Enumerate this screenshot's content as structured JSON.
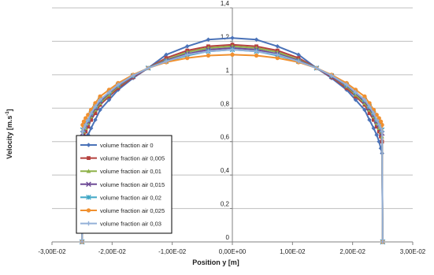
{
  "colors": {
    "grid": "#bfbfbf",
    "axis": "#808080",
    "text": "#1f1f1f"
  },
  "chart_data": {
    "type": "line",
    "title": "",
    "xlabel": "Position y [m]",
    "ylabel_main": "Velocity [m.s",
    "ylabel_sup": "-1",
    "ylabel_end": "]",
    "xlim": [
      -0.03,
      0.03
    ],
    "ylim": [
      0,
      1.4
    ],
    "xticks": [
      -0.03,
      -0.02,
      -0.01,
      0,
      0.01,
      0.02,
      0.03
    ],
    "xtick_labels": [
      "-3,00E-02",
      "-2,00E-02",
      "-1,00E-02",
      "0,00E+00",
      "1,00E-02",
      "2,00E-02",
      "3,00E-02"
    ],
    "yticks": [
      0,
      0.2,
      0.4,
      0.6,
      0.8,
      1,
      1.2,
      1.4
    ],
    "ytick_labels": [
      "0",
      "0,2",
      "0,4",
      "0,6",
      "0,8",
      "1",
      "1,2",
      "1,4"
    ],
    "grid": "horizontal",
    "legend_position": "left-middle",
    "series": [
      {
        "name": "volume fraction air 0",
        "color": "#4a72b8",
        "marker": "diamond",
        "x": [
          -0.025,
          -0.0249,
          -0.0247,
          -0.0244,
          -0.024,
          -0.0235,
          -0.0228,
          -0.022,
          -0.0205,
          -0.019,
          -0.0165,
          -0.014,
          -0.011,
          -0.0075,
          -0.004,
          0,
          0.004,
          0.0075,
          0.011,
          0.014,
          0.0165,
          0.019,
          0.0205,
          0.022,
          0.0228,
          0.0235,
          0.024,
          0.0244,
          0.0247,
          0.0249,
          0.025
        ],
        "y": [
          0,
          0.53,
          0.56,
          0.6,
          0.64,
          0.68,
          0.73,
          0.79,
          0.85,
          0.91,
          0.98,
          1.04,
          1.12,
          1.17,
          1.21,
          1.22,
          1.21,
          1.17,
          1.12,
          1.04,
          0.98,
          0.91,
          0.85,
          0.79,
          0.73,
          0.68,
          0.64,
          0.6,
          0.56,
          0.53,
          0
        ]
      },
      {
        "name": "volume fraction air 0,005",
        "color": "#b5403d",
        "marker": "square",
        "x": [
          -0.025,
          -0.0249,
          -0.0247,
          -0.0244,
          -0.024,
          -0.0235,
          -0.0228,
          -0.022,
          -0.0205,
          -0.019,
          -0.0165,
          -0.014,
          -0.011,
          -0.0075,
          -0.004,
          0,
          0.004,
          0.0075,
          0.011,
          0.014,
          0.0165,
          0.019,
          0.0205,
          0.022,
          0.0228,
          0.0235,
          0.024,
          0.0244,
          0.0247,
          0.0249,
          0.025
        ],
        "y": [
          0,
          0.6,
          0.63,
          0.66,
          0.69,
          0.73,
          0.77,
          0.82,
          0.87,
          0.92,
          0.985,
          1.04,
          1.1,
          1.145,
          1.17,
          1.18,
          1.17,
          1.145,
          1.1,
          1.04,
          0.985,
          0.92,
          0.87,
          0.82,
          0.77,
          0.73,
          0.69,
          0.66,
          0.63,
          0.6,
          0
        ]
      },
      {
        "name": "volume fraction air 0,01",
        "color": "#8fb24a",
        "marker": "triangle",
        "x": [
          -0.025,
          -0.0249,
          -0.0247,
          -0.0244,
          -0.024,
          -0.0235,
          -0.0228,
          -0.022,
          -0.0205,
          -0.019,
          -0.0165,
          -0.014,
          -0.011,
          -0.0075,
          -0.004,
          0,
          0.004,
          0.0075,
          0.011,
          0.014,
          0.0165,
          0.019,
          0.0205,
          0.022,
          0.0228,
          0.0235,
          0.024,
          0.0244,
          0.0247,
          0.0249,
          0.025
        ],
        "y": [
          0,
          0.63,
          0.66,
          0.68,
          0.71,
          0.75,
          0.79,
          0.83,
          0.88,
          0.93,
          0.99,
          1.04,
          1.09,
          1.135,
          1.16,
          1.17,
          1.16,
          1.135,
          1.09,
          1.04,
          0.99,
          0.93,
          0.88,
          0.83,
          0.79,
          0.75,
          0.71,
          0.68,
          0.66,
          0.63,
          0
        ]
      },
      {
        "name": "volume fraction air 0,015",
        "color": "#6e4b96",
        "marker": "x",
        "x": [
          -0.025,
          -0.0249,
          -0.0247,
          -0.0244,
          -0.024,
          -0.0235,
          -0.0228,
          -0.022,
          -0.0205,
          -0.019,
          -0.0165,
          -0.014,
          -0.011,
          -0.0075,
          -0.004,
          0,
          0.004,
          0.0075,
          0.011,
          0.014,
          0.0165,
          0.019,
          0.0205,
          0.022,
          0.0228,
          0.0235,
          0.024,
          0.0244,
          0.0247,
          0.0249,
          0.025
        ],
        "y": [
          0,
          0.65,
          0.67,
          0.7,
          0.72,
          0.76,
          0.8,
          0.84,
          0.89,
          0.935,
          0.99,
          1.04,
          1.085,
          1.125,
          1.15,
          1.16,
          1.15,
          1.125,
          1.085,
          1.04,
          0.99,
          0.935,
          0.89,
          0.84,
          0.8,
          0.76,
          0.72,
          0.7,
          0.67,
          0.65,
          0
        ]
      },
      {
        "name": "volume fraction air 0,02",
        "color": "#3fa6c5",
        "marker": "asterisk",
        "x": [
          -0.025,
          -0.0249,
          -0.0247,
          -0.0244,
          -0.024,
          -0.0235,
          -0.0228,
          -0.022,
          -0.0205,
          -0.019,
          -0.0165,
          -0.014,
          -0.011,
          -0.0075,
          -0.004,
          0,
          0.004,
          0.0075,
          0.011,
          0.014,
          0.0165,
          0.019,
          0.0205,
          0.022,
          0.0228,
          0.0235,
          0.024,
          0.0244,
          0.0247,
          0.0249,
          0.025
        ],
        "y": [
          0,
          0.67,
          0.69,
          0.71,
          0.73,
          0.77,
          0.81,
          0.85,
          0.895,
          0.94,
          0.995,
          1.04,
          1.08,
          1.115,
          1.14,
          1.15,
          1.14,
          1.115,
          1.08,
          1.04,
          0.995,
          0.94,
          0.895,
          0.85,
          0.81,
          0.77,
          0.73,
          0.71,
          0.69,
          0.67,
          0
        ]
      },
      {
        "name": "volume fraction air 0,025",
        "color": "#f0902f",
        "marker": "circle",
        "x": [
          -0.025,
          -0.0249,
          -0.0247,
          -0.0244,
          -0.024,
          -0.0235,
          -0.0228,
          -0.022,
          -0.0205,
          -0.019,
          -0.0165,
          -0.014,
          -0.011,
          -0.0075,
          -0.004,
          0,
          0.004,
          0.0075,
          0.011,
          0.014,
          0.0165,
          0.019,
          0.0205,
          0.022,
          0.0228,
          0.0235,
          0.024,
          0.0244,
          0.0247,
          0.0249,
          0.025
        ],
        "y": [
          0,
          0.7,
          0.72,
          0.74,
          0.76,
          0.79,
          0.83,
          0.87,
          0.91,
          0.95,
          1.0,
          1.04,
          1.075,
          1.1,
          1.115,
          1.12,
          1.115,
          1.1,
          1.075,
          1.04,
          1.0,
          0.95,
          0.91,
          0.87,
          0.83,
          0.79,
          0.76,
          0.74,
          0.72,
          0.7,
          0
        ]
      },
      {
        "name": "volume fraction air 0,03",
        "color": "#93b0d8",
        "marker": "plus",
        "x": [
          -0.025,
          -0.0249,
          -0.0247,
          -0.0244,
          -0.024,
          -0.0235,
          -0.0228,
          -0.022,
          -0.0205,
          -0.019,
          -0.0165,
          -0.014,
          -0.011,
          -0.0075,
          -0.004,
          0,
          0.004,
          0.0075,
          0.011,
          0.014,
          0.0165,
          0.019,
          0.0205,
          0.022,
          0.0228,
          0.0235,
          0.024,
          0.0244,
          0.0247,
          0.0249,
          0.025
        ],
        "y": [
          0,
          0.66,
          0.68,
          0.7,
          0.73,
          0.77,
          0.81,
          0.85,
          0.895,
          0.94,
          0.995,
          1.04,
          1.08,
          1.12,
          1.14,
          1.15,
          1.14,
          1.12,
          1.08,
          1.04,
          0.995,
          0.94,
          0.895,
          0.85,
          0.81,
          0.77,
          0.73,
          0.7,
          0.68,
          0.66,
          0
        ]
      }
    ]
  }
}
